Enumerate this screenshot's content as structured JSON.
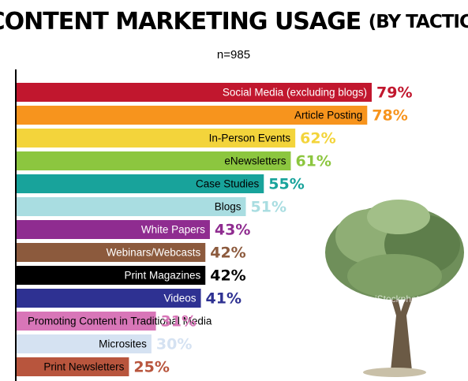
{
  "chart_data": {
    "type": "bar",
    "orientation": "horizontal",
    "title": "CONTENT MARKETING USAGE",
    "title_suffix": "(BY TACTIC)",
    "subtitle": "n=985",
    "categories": [
      "Social Media (excluding blogs)",
      "Article Posting",
      "In-Person Events",
      "eNewsletters",
      "Case Studies",
      "Blogs",
      "White Papers",
      "Webinars/Webcasts",
      "Print Magazines",
      "Videos",
      "Promoting Content in Traditional Media",
      "Microsites",
      "Print Newsletters"
    ],
    "values": [
      79,
      78,
      62,
      61,
      55,
      51,
      43,
      42,
      42,
      41,
      31,
      30,
      25
    ],
    "value_labels": [
      "79%",
      "78%",
      "62%",
      "61%",
      "55%",
      "51%",
      "43%",
      "42%",
      "42%",
      "41%",
      "31%",
      "30%",
      "25%"
    ],
    "colors": [
      "#c1172e",
      "#f7941d",
      "#f3d43b",
      "#8cc63f",
      "#18a39b",
      "#a9dde1",
      "#8f2c90",
      "#8c5a3d",
      "#000000",
      "#2e3192",
      "#d876b8",
      "#d5e2f2",
      "#b8553d"
    ],
    "label_colors": [
      "#ffffff",
      "#000000",
      "#000000",
      "#000000",
      "#000000",
      "#000000",
      "#ffffff",
      "#ffffff",
      "#ffffff",
      "#ffffff",
      "#000000",
      "#000000",
      "#000000"
    ],
    "watermark": "iStockphoto"
  }
}
